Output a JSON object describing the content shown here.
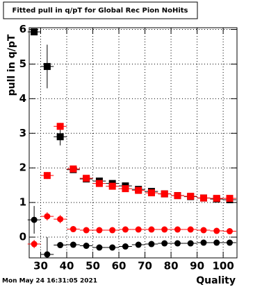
{
  "chart_data": {
    "type": "scatter",
    "title": "Fitted pull in q/pT for Global Rec Pion NoHits",
    "y_label": "pull in q/pT",
    "x_label": "Quality",
    "timestamp": "Mon May 24 16:31:05 2021",
    "x": [
      27.5,
      32.5,
      37.5,
      42.5,
      47.5,
      52.5,
      57.5,
      62.5,
      67.5,
      72.5,
      77.5,
      82.5,
      87.5,
      92.5,
      97.5,
      102.5
    ],
    "xlim": [
      25.6,
      105.3
    ],
    "ylim": [
      -0.6,
      6.05
    ],
    "xticks": [
      30,
      40,
      50,
      60,
      70,
      80,
      90,
      100
    ],
    "yticks": [
      0,
      1,
      2,
      3,
      4,
      5,
      6
    ],
    "grid": true,
    "series": [
      {
        "color": "#000000",
        "marker": "square",
        "values": [
          5.93,
          4.93,
          2.9,
          1.95,
          1.68,
          1.62,
          1.55,
          1.48,
          1.38,
          1.32,
          1.25,
          1.2,
          1.17,
          1.13,
          1.1,
          1.08
        ],
        "errors": [
          0.05,
          0.63,
          0.25,
          0.08,
          0.06,
          0.05,
          0.05,
          0.04,
          0.04,
          0.04,
          0.04,
          0.03,
          0.03,
          0.03,
          0.03,
          0.03
        ]
      },
      {
        "color": "#ff0000",
        "marker": "square",
        "values": [
          null,
          1.78,
          3.2,
          1.97,
          1.7,
          1.55,
          1.47,
          1.4,
          1.35,
          1.28,
          1.25,
          1.2,
          1.18,
          1.13,
          1.12,
          1.12
        ],
        "errors": [
          null,
          0.1,
          0.1,
          0.06,
          0.05,
          0.05,
          0.04,
          0.04,
          0.04,
          0.04,
          0.03,
          0.03,
          0.03,
          0.03,
          0.03,
          0.03
        ]
      },
      {
        "color": "#ff0000",
        "marker": "circle",
        "values": [
          -0.2,
          0.6,
          0.52,
          0.23,
          0.2,
          0.2,
          0.2,
          0.22,
          0.22,
          0.22,
          0.22,
          0.22,
          0.22,
          0.2,
          0.18,
          0.17
        ],
        "errors": [
          0.12,
          0.12,
          0.12,
          0.04,
          0.03,
          0.03,
          0.03,
          0.03,
          0.03,
          0.03,
          0.03,
          0.03,
          0.03,
          0.03,
          0.03,
          0.03
        ]
      },
      {
        "color": "#000000",
        "marker": "circle",
        "values": [
          0.5,
          -0.5,
          -0.23,
          -0.22,
          -0.25,
          -0.3,
          -0.3,
          -0.27,
          -0.22,
          -0.2,
          -0.18,
          -0.18,
          -0.18,
          -0.16,
          -0.16,
          -0.16
        ],
        "errors": [
          0.4,
          0.5,
          0.08,
          0.04,
          0.03,
          0.03,
          0.03,
          0.03,
          0.03,
          0.03,
          0.03,
          0.03,
          0.03,
          0.03,
          0.03,
          0.03
        ]
      }
    ]
  }
}
